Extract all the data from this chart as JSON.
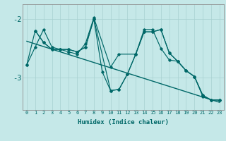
{
  "xlabel": "Humidex (Indice chaleur)",
  "bg_color": "#c5e8e8",
  "grid_color": "#a8d0d0",
  "line_color": "#006868",
  "x_ticks": [
    0,
    1,
    2,
    3,
    4,
    5,
    6,
    7,
    8,
    9,
    10,
    11,
    12,
    13,
    14,
    15,
    16,
    17,
    18,
    19,
    20,
    21,
    22,
    23
  ],
  "ylim": [
    -3.55,
    -1.75
  ],
  "yticks": [
    -3,
    -2
  ],
  "series1_x": [
    0,
    1,
    2,
    3,
    4,
    5,
    6,
    7,
    8,
    10,
    11,
    13,
    14,
    15,
    16,
    17,
    18,
    19,
    20,
    21,
    22,
    23
  ],
  "series1_y": [
    -2.78,
    -2.48,
    -2.18,
    -2.48,
    -2.52,
    -2.56,
    -2.6,
    -2.42,
    -1.98,
    -2.82,
    -2.6,
    -2.6,
    -2.18,
    -2.18,
    -2.5,
    -2.7,
    -2.72,
    -2.88,
    -2.98,
    -3.32,
    -3.38,
    -3.38
  ],
  "series2_x": [
    0,
    1,
    2,
    3,
    4,
    5,
    6,
    7,
    8,
    9,
    10,
    11,
    12,
    13,
    14,
    15,
    16,
    17,
    18,
    19,
    20,
    21,
    22,
    23
  ],
  "series2_y": [
    -2.78,
    -2.2,
    -2.4,
    -2.52,
    -2.52,
    -2.52,
    -2.56,
    -2.48,
    -2.0,
    -2.9,
    -3.22,
    -3.2,
    -2.94,
    -2.6,
    -2.22,
    -2.22,
    -2.18,
    -2.58,
    -2.72,
    -2.88,
    -2.98,
    -3.3,
    -3.38,
    -3.38
  ],
  "series3_x": [
    1,
    2,
    3,
    4,
    5,
    6,
    7,
    8,
    10,
    11,
    12,
    13,
    14,
    15,
    16,
    17,
    18,
    19,
    20,
    21,
    22,
    23
  ],
  "series3_y": [
    -2.2,
    -2.4,
    -2.52,
    -2.52,
    -2.52,
    -2.56,
    -2.48,
    -2.0,
    -3.22,
    -3.2,
    -2.94,
    -2.6,
    -2.22,
    -2.22,
    -2.18,
    -2.58,
    -2.72,
    -2.88,
    -2.98,
    -3.3,
    -3.38,
    -3.38
  ],
  "trend_x": [
    0,
    23
  ],
  "trend_y": [
    -2.38,
    -3.42
  ]
}
